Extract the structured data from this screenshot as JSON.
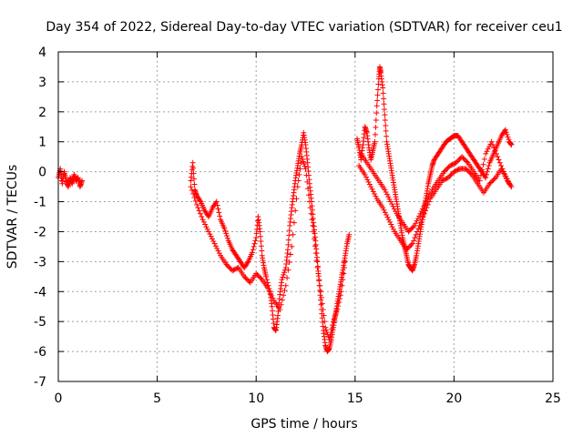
{
  "chart_data": {
    "type": "scatter",
    "title": "Day 354 of 2022, Sidereal Day-to-day VTEC variation (SDTVAR) for receiver ceu1",
    "xlabel": "GPS time / hours",
    "ylabel": "SDTVAR / TECUs",
    "xlim": [
      0,
      25
    ],
    "ylim": [
      -7,
      4
    ],
    "x_ticks": [
      0,
      5,
      10,
      15,
      20,
      25
    ],
    "y_ticks": [
      -7,
      -6,
      -5,
      -4,
      -3,
      -2,
      -1,
      0,
      1,
      2,
      3,
      4
    ],
    "grid": true,
    "marker": "+",
    "series": [
      {
        "name": "SDTVAR",
        "color": "#ff0000",
        "segments": [
          [
            [
              0.0,
              -0.2
            ],
            [
              0.1,
              0.1
            ],
            [
              0.2,
              -0.4
            ],
            [
              0.3,
              0.0
            ],
            [
              0.4,
              -0.3
            ],
            [
              0.5,
              -0.5
            ],
            [
              0.6,
              -0.2
            ],
            [
              0.7,
              -0.4
            ],
            [
              0.8,
              -0.1
            ],
            [
              0.9,
              -0.3
            ],
            [
              1.0,
              -0.2
            ],
            [
              1.1,
              -0.5
            ],
            [
              1.2,
              -0.3
            ]
          ],
          [
            [
              6.7,
              -0.3
            ],
            [
              6.8,
              0.3
            ],
            [
              6.9,
              -0.6
            ],
            [
              7.0,
              -0.8
            ],
            [
              7.2,
              -1.0
            ],
            [
              7.4,
              -1.3
            ],
            [
              7.6,
              -1.5
            ],
            [
              7.8,
              -1.2
            ],
            [
              8.0,
              -1.0
            ],
            [
              8.2,
              -1.6
            ],
            [
              8.4,
              -1.9
            ],
            [
              8.6,
              -2.3
            ],
            [
              8.8,
              -2.6
            ],
            [
              9.0,
              -2.8
            ],
            [
              9.2,
              -3.0
            ],
            [
              9.4,
              -3.2
            ],
            [
              9.6,
              -3.0
            ],
            [
              9.8,
              -2.7
            ],
            [
              10.0,
              -2.2
            ],
            [
              10.1,
              -1.5
            ],
            [
              10.2,
              -2.0
            ],
            [
              10.3,
              -2.8
            ],
            [
              10.4,
              -3.2
            ],
            [
              10.5,
              -3.5
            ],
            [
              10.7,
              -4.0
            ],
            [
              10.8,
              -4.5
            ],
            [
              10.9,
              -5.2
            ],
            [
              11.0,
              -5.3
            ],
            [
              11.1,
              -4.8
            ],
            [
              11.2,
              -4.1
            ],
            [
              11.3,
              -3.6
            ],
            [
              11.5,
              -3.2
            ],
            [
              11.6,
              -2.6
            ],
            [
              11.7,
              -1.8
            ],
            [
              11.8,
              -1.2
            ],
            [
              11.9,
              -0.7
            ],
            [
              12.0,
              -0.2
            ],
            [
              12.1,
              0.2
            ],
            [
              12.2,
              0.6
            ],
            [
              12.3,
              0.9
            ],
            [
              12.4,
              1.3
            ],
            [
              12.5,
              0.9
            ],
            [
              12.6,
              0.3
            ],
            [
              12.7,
              -0.4
            ],
            [
              12.8,
              -1.0
            ],
            [
              12.9,
              -1.7
            ],
            [
              13.0,
              -2.3
            ],
            [
              13.1,
              -3.0
            ],
            [
              13.2,
              -3.8
            ],
            [
              13.3,
              -4.6
            ],
            [
              13.4,
              -5.3
            ],
            [
              13.5,
              -5.8
            ],
            [
              13.6,
              -6.0
            ],
            [
              13.7,
              -5.9
            ],
            [
              13.8,
              -5.6
            ],
            [
              13.9,
              -5.2
            ],
            [
              14.0,
              -4.8
            ],
            [
              14.1,
              -4.4
            ],
            [
              14.2,
              -4.0
            ],
            [
              14.3,
              -3.6
            ],
            [
              14.4,
              -3.2
            ],
            [
              14.5,
              -2.8
            ],
            [
              14.6,
              -2.4
            ],
            [
              14.7,
              -2.1
            ]
          ],
          [
            [
              6.7,
              -0.5
            ],
            [
              7.0,
              -1.1
            ],
            [
              7.3,
              -1.6
            ],
            [
              7.6,
              -2.0
            ],
            [
              7.9,
              -2.4
            ],
            [
              8.2,
              -2.8
            ],
            [
              8.5,
              -3.1
            ],
            [
              8.8,
              -3.3
            ],
            [
              9.1,
              -3.2
            ],
            [
              9.4,
              -3.5
            ],
            [
              9.7,
              -3.7
            ],
            [
              10.0,
              -3.4
            ],
            [
              10.3,
              -3.6
            ],
            [
              10.6,
              -3.9
            ],
            [
              10.9,
              -4.3
            ],
            [
              11.2,
              -4.6
            ],
            [
              11.5,
              -3.8
            ],
            [
              11.8,
              -2.5
            ],
            [
              12.1,
              -0.5
            ],
            [
              12.3,
              0.5
            ],
            [
              12.5,
              0.1
            ],
            [
              12.7,
              -1.0
            ],
            [
              12.9,
              -2.0
            ],
            [
              13.1,
              -3.2
            ],
            [
              13.3,
              -4.2
            ],
            [
              13.5,
              -5.2
            ],
            [
              13.7,
              -5.6
            ],
            [
              13.9,
              -5.0
            ],
            [
              14.1,
              -4.6
            ],
            [
              14.3,
              -4.0
            ],
            [
              14.5,
              -3.0
            ]
          ],
          [
            [
              15.1,
              1.1
            ],
            [
              15.2,
              0.8
            ],
            [
              15.3,
              0.4
            ],
            [
              15.4,
              0.9
            ],
            [
              15.5,
              1.5
            ],
            [
              15.6,
              1.3
            ],
            [
              15.7,
              0.8
            ],
            [
              15.8,
              0.4
            ],
            [
              15.9,
              0.7
            ],
            [
              16.0,
              1.0
            ],
            [
              16.1,
              2.2
            ],
            [
              16.2,
              3.1
            ],
            [
              16.25,
              3.5
            ],
            [
              16.3,
              3.3
            ],
            [
              16.4,
              2.8
            ],
            [
              16.5,
              1.9
            ],
            [
              16.6,
              1.0
            ],
            [
              16.7,
              0.6
            ],
            [
              16.8,
              0.2
            ],
            [
              16.9,
              -0.2
            ],
            [
              17.0,
              -0.6
            ],
            [
              17.1,
              -1.0
            ],
            [
              17.2,
              -1.4
            ],
            [
              17.3,
              -1.8
            ],
            [
              17.4,
              -2.2
            ],
            [
              17.5,
              -2.5
            ],
            [
              17.6,
              -2.8
            ],
            [
              17.7,
              -3.1
            ],
            [
              17.8,
              -3.2
            ],
            [
              17.9,
              -3.3
            ],
            [
              18.0,
              -3.1
            ],
            [
              18.1,
              -2.8
            ],
            [
              18.2,
              -2.4
            ],
            [
              18.3,
              -2.0
            ],
            [
              18.4,
              -1.6
            ],
            [
              18.5,
              -1.2
            ],
            [
              18.6,
              -0.8
            ],
            [
              18.7,
              -0.4
            ],
            [
              18.8,
              -0.1
            ],
            [
              18.9,
              0.2
            ],
            [
              19.0,
              0.4
            ],
            [
              19.2,
              0.6
            ],
            [
              19.4,
              0.8
            ],
            [
              19.6,
              1.0
            ],
            [
              19.8,
              1.1
            ],
            [
              20.0,
              1.2
            ],
            [
              20.2,
              1.2
            ],
            [
              20.4,
              1.0
            ],
            [
              20.6,
              0.8
            ],
            [
              20.8,
              0.6
            ],
            [
              21.0,
              0.4
            ],
            [
              21.2,
              0.2
            ],
            [
              21.4,
              0.0
            ],
            [
              21.6,
              -0.2
            ],
            [
              21.8,
              0.3
            ],
            [
              22.0,
              0.6
            ],
            [
              22.2,
              0.9
            ],
            [
              22.4,
              1.2
            ],
            [
              22.6,
              1.4
            ],
            [
              22.8,
              1.0
            ],
            [
              22.9,
              0.9
            ]
          ],
          [
            [
              15.2,
              0.2
            ],
            [
              15.5,
              -0.1
            ],
            [
              15.8,
              -0.5
            ],
            [
              16.1,
              -0.9
            ],
            [
              16.4,
              -1.2
            ],
            [
              16.7,
              -1.6
            ],
            [
              17.0,
              -2.0
            ],
            [
              17.3,
              -2.3
            ],
            [
              17.6,
              -2.6
            ],
            [
              17.9,
              -2.4
            ],
            [
              18.2,
              -1.9
            ],
            [
              18.5,
              -1.4
            ],
            [
              18.8,
              -0.9
            ],
            [
              19.1,
              -0.6
            ],
            [
              19.4,
              -0.3
            ],
            [
              19.7,
              -0.2
            ],
            [
              20.0,
              0.0
            ],
            [
              20.3,
              0.1
            ],
            [
              20.6,
              0.1
            ],
            [
              20.9,
              -0.1
            ],
            [
              21.2,
              -0.4
            ],
            [
              21.5,
              -0.7
            ],
            [
              21.8,
              -0.4
            ],
            [
              22.1,
              -0.2
            ],
            [
              22.4,
              0.1
            ],
            [
              22.7,
              -0.3
            ],
            [
              22.9,
              -0.5
            ]
          ],
          [
            [
              15.3,
              0.6
            ],
            [
              15.6,
              0.3
            ],
            [
              15.9,
              0.0
            ],
            [
              16.2,
              -0.3
            ],
            [
              16.5,
              -0.6
            ],
            [
              16.8,
              -1.0
            ],
            [
              17.1,
              -1.4
            ],
            [
              17.4,
              -1.7
            ],
            [
              17.7,
              -2.0
            ],
            [
              18.0,
              -1.8
            ],
            [
              18.3,
              -1.4
            ],
            [
              18.6,
              -1.0
            ],
            [
              18.9,
              -0.6
            ],
            [
              19.2,
              -0.3
            ],
            [
              19.5,
              0.0
            ],
            [
              19.8,
              0.2
            ],
            [
              20.1,
              0.3
            ],
            [
              20.4,
              0.5
            ],
            [
              20.7,
              0.3
            ],
            [
              21.0,
              0.0
            ],
            [
              21.3,
              -0.3
            ],
            [
              21.6,
              0.6
            ],
            [
              21.9,
              1.0
            ],
            [
              22.2,
              0.5
            ],
            [
              22.5,
              0.0
            ],
            [
              22.8,
              -0.4
            ]
          ]
        ]
      }
    ]
  }
}
